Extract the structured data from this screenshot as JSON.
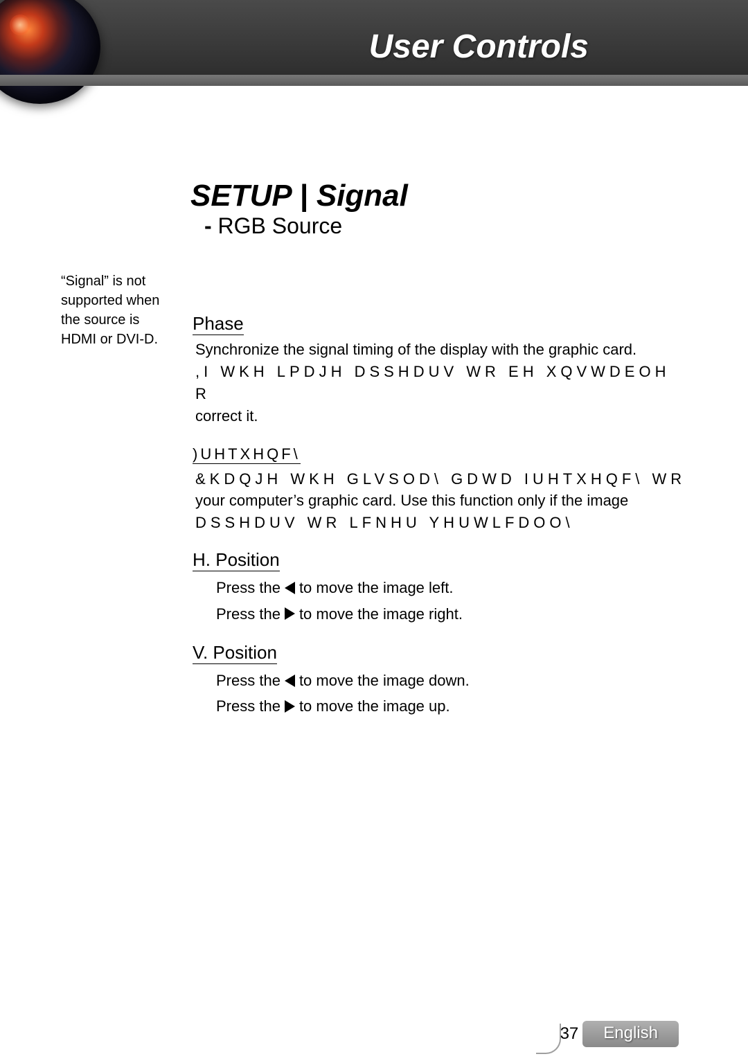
{
  "header": {
    "title": "User Controls"
  },
  "page": {
    "title": "SETUP | Signal",
    "subtitle": "RGB Source"
  },
  "sideNote": "“Signal” is not supported when the source is HDMI or DVI-D.",
  "sections": {
    "phase": {
      "label": "Phase",
      "body_line1": "Synchronize the signal timing of the display with the graphic card.",
      "body_line2": ",I WKH LPDJH DSSHDUV WR EH XQVWDEOH R",
      "body_line3": "correct it."
    },
    "frequency": {
      "label": ")UHTXHQF\\",
      "body_line1": "&KDQJH WKH GLVSOD\\ GDWD IUHTXHQF\\ WR",
      "body_line2": "your computer’s graphic card. Use this function only if the image",
      "body_line3": "DSSHDUV WR  LFNHU YHUWLFDOO\\"
    },
    "hpos": {
      "label": "H. Position",
      "press_prefix": "Press the",
      "left_desc": "to move the image left.",
      "right_desc": "to move the image right."
    },
    "vpos": {
      "label": "V. Position",
      "press_prefix": "Press the",
      "left_desc": "to move the image down.",
      "right_desc": "to move the image up."
    }
  },
  "footer": {
    "pageNumber": "37",
    "language": "English"
  },
  "colors": {
    "headerGradientTop": "#4a4a4a",
    "headerGradientBottom": "#2a2a2a",
    "lensHighlight": "#ff8a3d",
    "footerPill": "#8a8a8a",
    "text": "#000000",
    "background": "#ffffff"
  }
}
